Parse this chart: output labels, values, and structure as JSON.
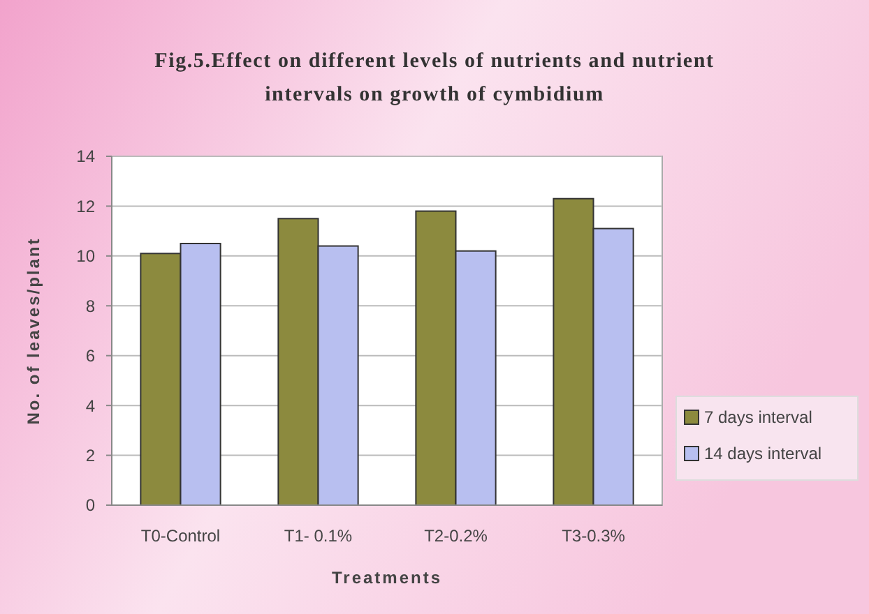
{
  "chart_data": {
    "type": "bar",
    "title": "Fig.5.Effect on different levels of nutrients and nutrient intervals on growth of cymbidium",
    "xlabel": "Treatments",
    "ylabel": "No. of leaves/plant",
    "categories": [
      "T0-Control",
      "T1- 0.1%",
      "T2-0.2%",
      "T3-0.3%"
    ],
    "series": [
      {
        "name": "7 days interval",
        "color": "#8c8a3e",
        "values": [
          10.1,
          11.5,
          11.8,
          12.3
        ]
      },
      {
        "name": "14 days interval",
        "color": "#b8bff0",
        "values": [
          10.5,
          10.4,
          10.2,
          11.1
        ]
      }
    ],
    "ylim": [
      0,
      14
    ],
    "yticks": [
      0,
      2,
      4,
      6,
      8,
      10,
      12,
      14
    ],
    "grid": "y",
    "legend": "right"
  }
}
